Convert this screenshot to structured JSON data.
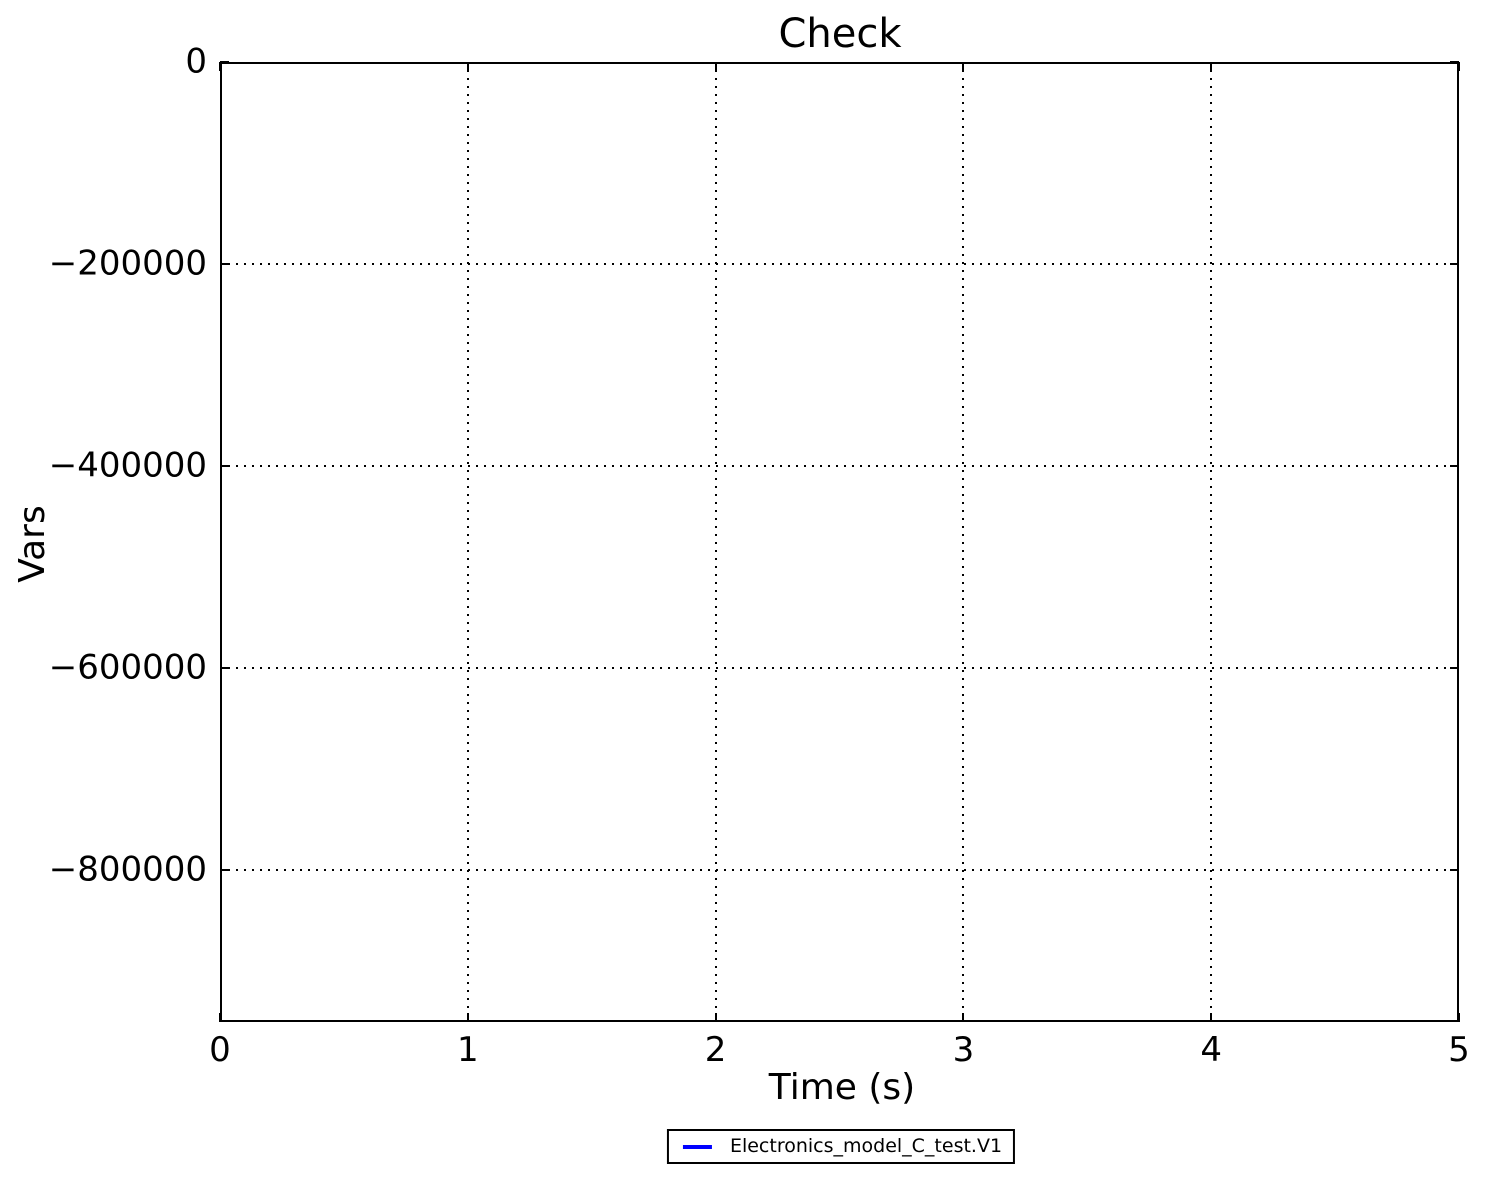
{
  "figure": {
    "background": "#ffffff",
    "axes_color": "#000000"
  },
  "chart_data": {
    "type": "line",
    "title": "Check",
    "xlabel": "Time (s)",
    "ylabel": "Vars",
    "xlim": [
      0,
      5
    ],
    "ylim": [
      -950000,
      0
    ],
    "xticks": [
      0,
      1,
      2,
      3,
      4,
      5
    ],
    "xtick_labels": [
      "0",
      "1",
      "2",
      "3",
      "4",
      "5"
    ],
    "yticks": [
      0,
      -200000,
      -400000,
      -600000,
      -800000
    ],
    "ytick_labels": [
      "0",
      "−200000",
      "−400000",
      "−600000",
      "−800000"
    ],
    "grid": {
      "visible": true,
      "style": "dotted",
      "color": "#000000"
    },
    "legend": {
      "position": "below-axes-center",
      "border_color": "#000000",
      "background": "#ffffff",
      "entries": [
        {
          "label": "Electronics_model_C_test.V1",
          "color": "#0000ff"
        }
      ]
    },
    "series": [
      {
        "name": "Electronics_model_C_test.V1",
        "color": "#0000ff",
        "x": [],
        "y": []
      }
    ]
  }
}
